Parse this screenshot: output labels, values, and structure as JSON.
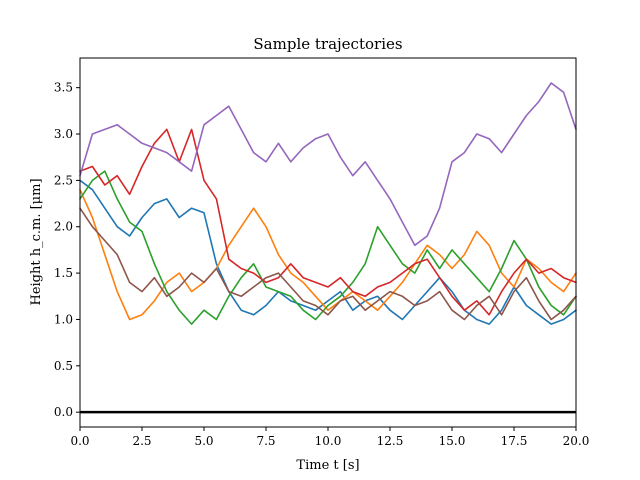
{
  "chart_data": {
    "type": "line",
    "title": "Sample trajectories",
    "xlabel": "Time t [s]",
    "ylabel": "Height h_c.m. [μm]",
    "xlim": [
      0,
      20
    ],
    "ylim": [
      -0.16,
      3.82
    ],
    "xticks": [
      "0.0",
      "2.5",
      "5.0",
      "7.5",
      "10.0",
      "12.5",
      "15.0",
      "17.5",
      "20.0"
    ],
    "yticks": [
      "0.0",
      "0.5",
      "1.0",
      "1.5",
      "2.0",
      "2.5",
      "3.0",
      "3.5"
    ],
    "grid": false,
    "legend": "none",
    "reference_line": {
      "y": 0.0,
      "color": "#000000"
    },
    "series": [
      {
        "color": "#1f77b4",
        "x": [
          0,
          0.5,
          1,
          1.5,
          2,
          2.5,
          3,
          3.5,
          4,
          4.5,
          5,
          5.5,
          6,
          6.5,
          7,
          7.5,
          8,
          8.5,
          9,
          9.5,
          10,
          10.5,
          11,
          11.5,
          12,
          12.5,
          13,
          13.5,
          14,
          14.5,
          15,
          15.5,
          16,
          16.5,
          17,
          17.5,
          18,
          18.5,
          19,
          19.5,
          20
        ],
        "y": [
          2.5,
          2.4,
          2.2,
          2.0,
          1.9,
          2.1,
          2.25,
          2.3,
          2.1,
          2.2,
          2.15,
          1.6,
          1.3,
          1.1,
          1.05,
          1.15,
          1.3,
          1.2,
          1.15,
          1.1,
          1.2,
          1.3,
          1.1,
          1.2,
          1.25,
          1.1,
          1.0,
          1.15,
          1.3,
          1.45,
          1.3,
          1.1,
          1.0,
          0.95,
          1.1,
          1.35,
          1.15,
          1.05,
          0.95,
          1.0,
          1.1
        ]
      },
      {
        "color": "#ff7f0e",
        "x": [
          0,
          0.5,
          1,
          1.5,
          2,
          2.5,
          3,
          3.5,
          4,
          4.5,
          5,
          5.5,
          6,
          6.5,
          7,
          7.5,
          8,
          8.5,
          9,
          9.5,
          10,
          10.5,
          11,
          11.5,
          12,
          12.5,
          13,
          13.5,
          14,
          14.5,
          15,
          15.5,
          16,
          16.5,
          17,
          17.5,
          18,
          18.5,
          19,
          19.5,
          20
        ],
        "y": [
          2.4,
          2.1,
          1.7,
          1.3,
          1.0,
          1.05,
          1.2,
          1.4,
          1.5,
          1.3,
          1.4,
          1.55,
          1.8,
          2.0,
          2.2,
          2.0,
          1.7,
          1.5,
          1.4,
          1.25,
          1.1,
          1.2,
          1.3,
          1.2,
          1.1,
          1.25,
          1.4,
          1.6,
          1.8,
          1.7,
          1.55,
          1.7,
          1.95,
          1.8,
          1.5,
          1.35,
          1.65,
          1.55,
          1.4,
          1.3,
          1.5
        ]
      },
      {
        "color": "#2ca02c",
        "x": [
          0,
          0.5,
          1,
          1.5,
          2,
          2.5,
          3,
          3.5,
          4,
          4.5,
          5,
          5.5,
          6,
          6.5,
          7,
          7.5,
          8,
          8.5,
          9,
          9.5,
          10,
          10.5,
          11,
          11.5,
          12,
          12.5,
          13,
          13.5,
          14,
          14.5,
          15,
          15.5,
          16,
          16.5,
          17,
          17.5,
          18,
          18.5,
          19,
          19.5,
          20
        ],
        "y": [
          2.3,
          2.5,
          2.6,
          2.3,
          2.05,
          1.95,
          1.6,
          1.3,
          1.1,
          0.95,
          1.1,
          1.0,
          1.25,
          1.45,
          1.6,
          1.35,
          1.3,
          1.25,
          1.1,
          1.0,
          1.15,
          1.25,
          1.4,
          1.6,
          2.0,
          1.8,
          1.6,
          1.5,
          1.75,
          1.55,
          1.75,
          1.6,
          1.45,
          1.3,
          1.55,
          1.85,
          1.65,
          1.35,
          1.15,
          1.05,
          1.25
        ]
      },
      {
        "color": "#d62728",
        "x": [
          0,
          0.5,
          1,
          1.5,
          2,
          2.5,
          3,
          3.5,
          4,
          4.5,
          5,
          5.5,
          6,
          6.5,
          7,
          7.5,
          8,
          8.5,
          9,
          9.5,
          10,
          10.5,
          11,
          11.5,
          12,
          12.5,
          13,
          13.5,
          14,
          14.5,
          15,
          15.5,
          16,
          16.5,
          17,
          17.5,
          18,
          18.5,
          19,
          19.5,
          20
        ],
        "y": [
          2.6,
          2.65,
          2.45,
          2.55,
          2.35,
          2.65,
          2.9,
          3.05,
          2.7,
          3.05,
          2.5,
          2.3,
          1.65,
          1.55,
          1.5,
          1.4,
          1.45,
          1.6,
          1.45,
          1.4,
          1.35,
          1.45,
          1.3,
          1.25,
          1.35,
          1.4,
          1.5,
          1.6,
          1.65,
          1.45,
          1.25,
          1.1,
          1.2,
          1.05,
          1.3,
          1.5,
          1.65,
          1.5,
          1.55,
          1.45,
          1.4
        ]
      },
      {
        "color": "#9467bd",
        "x": [
          0,
          0.5,
          1,
          1.5,
          2,
          2.5,
          3,
          3.5,
          4,
          4.5,
          5,
          5.5,
          6,
          6.5,
          7,
          7.5,
          8,
          8.5,
          9,
          9.5,
          10,
          10.5,
          11,
          11.5,
          12,
          12.5,
          13,
          13.5,
          14,
          14.5,
          15,
          15.5,
          16,
          16.5,
          17,
          17.5,
          18,
          18.5,
          19,
          19.5,
          20
        ],
        "y": [
          2.55,
          3.0,
          3.05,
          3.1,
          3.0,
          2.9,
          2.85,
          2.8,
          2.7,
          2.6,
          3.1,
          3.2,
          3.3,
          3.05,
          2.8,
          2.7,
          2.9,
          2.7,
          2.85,
          2.95,
          3.0,
          2.75,
          2.55,
          2.7,
          2.5,
          2.3,
          2.05,
          1.8,
          1.9,
          2.2,
          2.7,
          2.8,
          3.0,
          2.95,
          2.8,
          3.0,
          3.2,
          3.35,
          3.55,
          3.45,
          3.05
        ]
      },
      {
        "color": "#8c564b",
        "x": [
          0,
          0.5,
          1,
          1.5,
          2,
          2.5,
          3,
          3.5,
          4,
          4.5,
          5,
          5.5,
          6,
          6.5,
          7,
          7.5,
          8,
          8.5,
          9,
          9.5,
          10,
          10.5,
          11,
          11.5,
          12,
          12.5,
          13,
          13.5,
          14,
          14.5,
          15,
          15.5,
          16,
          16.5,
          17,
          17.5,
          18,
          18.5,
          19,
          19.5,
          20
        ],
        "y": [
          2.2,
          2.0,
          1.85,
          1.7,
          1.4,
          1.3,
          1.45,
          1.25,
          1.35,
          1.5,
          1.4,
          1.55,
          1.3,
          1.25,
          1.35,
          1.45,
          1.5,
          1.35,
          1.2,
          1.15,
          1.05,
          1.2,
          1.25,
          1.1,
          1.2,
          1.3,
          1.25,
          1.15,
          1.2,
          1.3,
          1.1,
          1.0,
          1.15,
          1.25,
          1.05,
          1.3,
          1.45,
          1.2,
          1.0,
          1.1,
          1.25
        ]
      }
    ]
  }
}
